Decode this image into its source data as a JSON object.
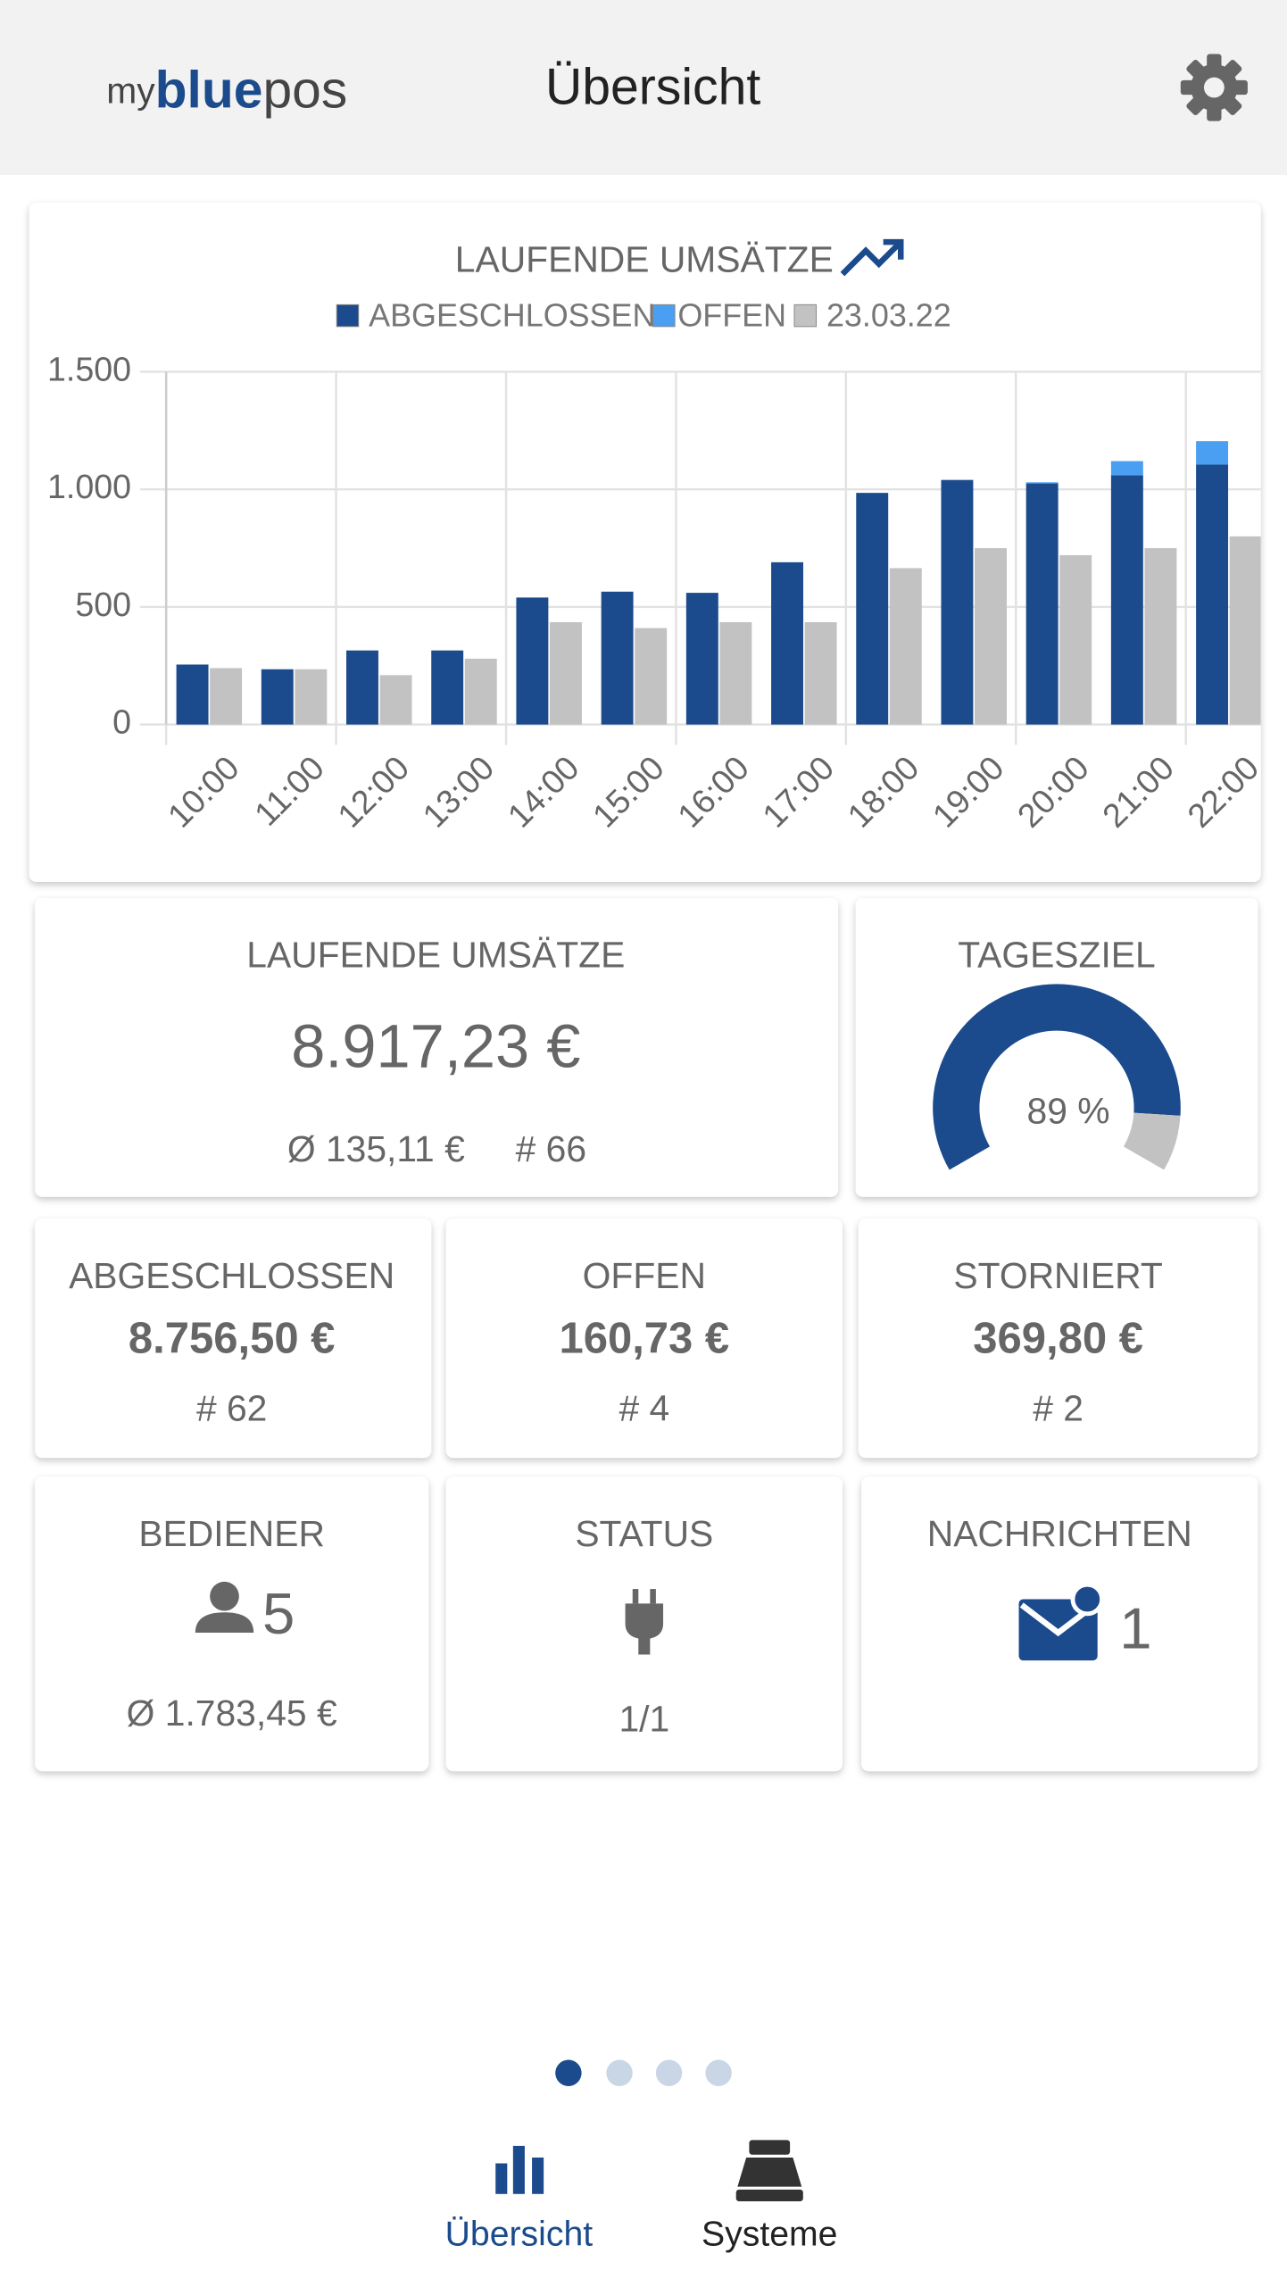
{
  "header": {
    "logo_my": "my",
    "logo_blue": "blue",
    "logo_pos": "pos",
    "title": "Übersicht"
  },
  "chart_data": {
    "type": "bar",
    "title": "LAUFENDE UMSÄTZE",
    "categories": [
      "10:00",
      "11:00",
      "12:00",
      "13:00",
      "14:00",
      "15:00",
      "16:00",
      "17:00",
      "18:00",
      "19:00",
      "20:00",
      "21:00",
      "22:00"
    ],
    "series": [
      {
        "name": "ABGESCHLOSSEN",
        "color": "#1b4b8c",
        "values": [
          255,
          235,
          315,
          315,
          540,
          565,
          560,
          690,
          985,
          1040,
          1025,
          1060,
          1105
        ]
      },
      {
        "name": "OFFEN",
        "color": "#4a9ff2",
        "stacked": true,
        "values": [
          0,
          0,
          0,
          0,
          0,
          0,
          0,
          0,
          0,
          0,
          5,
          60,
          100
        ]
      },
      {
        "name": "23.03.22",
        "color": "#c2c2c2",
        "values": [
          240,
          235,
          210,
          280,
          435,
          410,
          435,
          435,
          665,
          750,
          720,
          750,
          800
        ]
      }
    ],
    "ylim": [
      0,
      1500
    ],
    "yticks": [
      0,
      500,
      {
        "value": 1000,
        "label": "1.000"
      },
      {
        "value": 1500,
        "label": "1.500"
      }
    ],
    "grid": true
  },
  "summary": {
    "title": "LAUFENDE UMSÄTZE",
    "total": "8.917,23 €",
    "average": "Ø 135,11 €",
    "count": "# 66"
  },
  "goal": {
    "title": "TAGESZIEL",
    "value": 89,
    "label": "89 %"
  },
  "cards": [
    {
      "title": "ABGESCHLOSSEN",
      "amount": "8.756,50 €",
      "count": "# 62"
    },
    {
      "title": "OFFEN",
      "amount": "160,73 €",
      "count": "# 4"
    },
    {
      "title": "STORNIERT",
      "amount": "369,80 €",
      "count": "# 2"
    }
  ],
  "bediener": {
    "title": "BEDIENER",
    "count": "5",
    "average": "Ø 1.783,45 €"
  },
  "status": {
    "title": "STATUS",
    "value": "1/1"
  },
  "messages": {
    "title": "NACHRICHTEN",
    "count": "1"
  },
  "nav": [
    {
      "label": "Übersicht"
    },
    {
      "label": "Systeme"
    }
  ]
}
